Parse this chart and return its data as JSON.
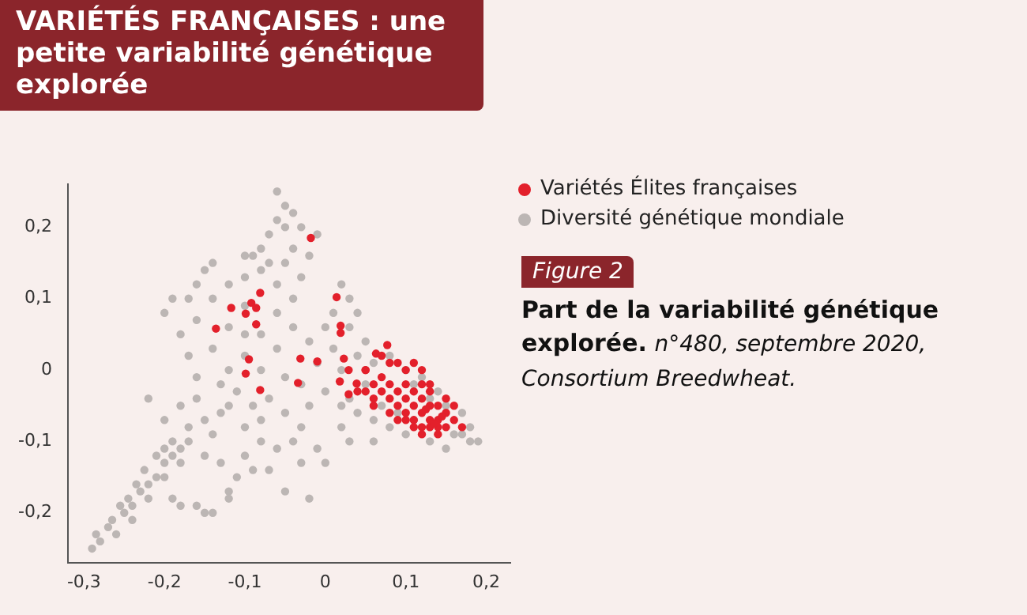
{
  "chart_data": {
    "type": "scatter",
    "title": "VARIÉTÉS FRANÇAISES : une petite variabilité génétique explorée",
    "annotations": [
      "Figure 2",
      "Part de la variabilité génétique explorée.",
      "n°480, septembre 2020, Consortium Breedwheat."
    ],
    "legend": "top right",
    "marker": "circle",
    "grid": false,
    "xlim": [
      -0.32,
      0.23
    ],
    "ylim": [
      -0.27,
      0.26
    ],
    "xticks": [
      {
        "value": -0.3,
        "label": "-0,3"
      },
      {
        "value": -0.2,
        "label": "-0,2"
      },
      {
        "value": -0.1,
        "label": "-0,1"
      },
      0,
      {
        "value": 0.1,
        "label": "0,1"
      },
      {
        "value": 0.2,
        "label": "0,2"
      }
    ],
    "yticks": [
      {
        "value": -0.2,
        "label": "-0,2"
      },
      {
        "value": -0.1,
        "label": "-0,1"
      },
      0,
      {
        "value": 0.1,
        "label": "0,1"
      },
      {
        "value": 0.2,
        "label": "0,2"
      }
    ],
    "series": [
      {
        "name": "Variétés Élites françaises",
        "color": "#e3202b",
        "x": [
          -0.018,
          0.014,
          -0.081,
          -0.092,
          -0.086,
          -0.117,
          -0.099,
          -0.086,
          -0.136,
          0.019,
          0.019,
          -0.095,
          -0.031,
          -0.01,
          0.023,
          -0.099,
          -0.034,
          -0.081,
          0.018,
          0.029,
          0.039,
          0.029,
          0.077,
          0.063,
          0.05,
          0.08,
          0.09,
          0.1,
          0.11,
          0.12,
          0.13,
          0.14,
          0.12,
          0.11,
          0.1,
          0.13,
          0.14,
          0.15,
          0.12,
          0.13,
          0.11,
          0.1,
          0.14,
          0.15,
          0.16,
          0.12,
          0.14,
          0.11,
          0.09,
          0.08,
          0.07,
          0.06,
          0.07,
          0.09,
          0.1,
          0.11,
          0.12,
          0.13,
          0.05,
          0.06,
          0.08,
          0.09,
          0.13,
          0.15,
          0.16,
          0.17,
          0.1,
          0.12,
          0.08,
          0.07,
          0.05,
          0.04,
          0.06,
          0.145,
          0.125,
          0.135
        ],
        "values": [
          0.185,
          0.102,
          0.108,
          0.094,
          0.087,
          0.087,
          0.079,
          0.064,
          0.058,
          0.062,
          0.052,
          0.015,
          0.016,
          0.012,
          0.016,
          -0.005,
          -0.018,
          -0.028,
          -0.016,
          0,
          -0.019,
          -0.034,
          0.035,
          0.023,
          0,
          -0.02,
          -0.03,
          -0.04,
          -0.03,
          -0.04,
          -0.05,
          -0.05,
          -0.06,
          -0.05,
          -0.06,
          -0.07,
          -0.07,
          -0.06,
          -0.08,
          -0.08,
          -0.07,
          -0.07,
          -0.08,
          -0.08,
          -0.07,
          -0.09,
          -0.09,
          -0.08,
          -0.05,
          -0.04,
          -0.03,
          -0.02,
          -0.01,
          0.01,
          0,
          0.01,
          0,
          -0.02,
          -0.03,
          -0.04,
          -0.06,
          -0.07,
          -0.03,
          -0.04,
          -0.05,
          -0.08,
          -0.02,
          -0.02,
          0.01,
          0.02,
          0,
          -0.03,
          -0.05,
          -0.065,
          -0.055,
          -0.075
        ]
      },
      {
        "name": "Diversité génétique mondiale",
        "color": "#bcb6b4",
        "x": [
          -0.29,
          -0.28,
          -0.285,
          -0.27,
          -0.26,
          -0.265,
          -0.25,
          -0.255,
          -0.24,
          -0.245,
          -0.23,
          -0.235,
          -0.22,
          -0.21,
          -0.225,
          -0.2,
          -0.21,
          -0.19,
          -0.2,
          -0.18,
          -0.19,
          -0.17,
          -0.24,
          -0.22,
          -0.2,
          -0.18,
          -0.18,
          -0.16,
          -0.15,
          -0.14,
          -0.19,
          -0.12,
          -0.11,
          -0.09,
          -0.07,
          -0.05,
          -0.02,
          -0.03,
          0,
          -0.01,
          -0.13,
          -0.15,
          -0.1,
          -0.06,
          -0.04,
          -0.08,
          0.02,
          -0.12,
          -0.2,
          -0.19,
          -0.17,
          -0.16,
          -0.15,
          -0.14,
          -0.16,
          -0.18,
          -0.17,
          -0.16,
          -0.18,
          -0.16,
          -0.15,
          -0.17,
          -0.14,
          -0.2,
          -0.22,
          -0.13,
          -0.14,
          -0.12,
          -0.1,
          -0.08,
          -0.12,
          -0.1,
          -0.14,
          -0.12,
          -0.1,
          -0.08,
          -0.06,
          -0.04,
          -0.06,
          -0.04,
          -0.02,
          -0.06,
          -0.08,
          -0.05,
          -0.03,
          -0.11,
          -0.09,
          -0.07,
          -0.12,
          -0.05,
          -0.02,
          0,
          -0.01,
          0,
          0.01,
          -0.03,
          -0.1,
          -0.13,
          -0.08,
          -0.03,
          -0.1,
          -0.08,
          -0.07,
          -0.06,
          -0.05,
          -0.06,
          -0.05,
          -0.04,
          -0.04,
          -0.03,
          -0.02,
          -0.01,
          -0.07,
          -0.05,
          -0.09,
          -0.1,
          0.02,
          0.03,
          0.01,
          0.03,
          0.05,
          0.04,
          0.02,
          0.04,
          0.06,
          0.08,
          0.1,
          0.12,
          0.14,
          0.15,
          0.17,
          0.18,
          0.19,
          0.18,
          0.16,
          0.15,
          0.13,
          0.1,
          0.08,
          0.06,
          0.04,
          0.03,
          0.05,
          0.07,
          0.09,
          0.11,
          0.13,
          0.11,
          0.06,
          0.02,
          0.03,
          0.17
        ],
        "values": [
          -0.25,
          -0.24,
          -0.23,
          -0.22,
          -0.23,
          -0.21,
          -0.2,
          -0.19,
          -0.19,
          -0.18,
          -0.17,
          -0.16,
          -0.16,
          -0.15,
          -0.14,
          -0.13,
          -0.12,
          -0.12,
          -0.11,
          -0.11,
          -0.1,
          -0.1,
          -0.21,
          -0.18,
          -0.15,
          -0.13,
          -0.19,
          -0.19,
          -0.2,
          -0.2,
          -0.18,
          -0.17,
          -0.15,
          -0.14,
          -0.14,
          -0.17,
          -0.18,
          -0.13,
          -0.13,
          -0.11,
          -0.13,
          -0.12,
          -0.12,
          -0.11,
          -0.1,
          -0.1,
          -0.08,
          -0.18,
          0.08,
          0.1,
          0.1,
          0.12,
          0.14,
          0.15,
          0.07,
          0.05,
          0.02,
          -0.01,
          -0.05,
          -0.04,
          -0.07,
          -0.08,
          -0.09,
          -0.07,
          -0.04,
          -0.06,
          0.1,
          0.12,
          0.13,
          0.14,
          0.06,
          0.05,
          0.03,
          0,
          0.02,
          0.05,
          0.08,
          0.1,
          0.12,
          0.06,
          0.04,
          0.03,
          0,
          -0.01,
          -0.02,
          -0.03,
          -0.05,
          -0.04,
          -0.05,
          -0.06,
          -0.05,
          -0.03,
          0.01,
          0.06,
          0.03,
          0.13,
          0.09,
          -0.02,
          -0.07,
          -0.08,
          -0.08,
          0.17,
          0.19,
          0.21,
          0.23,
          0.25,
          0.2,
          0.22,
          0.17,
          0.2,
          0.16,
          0.19,
          0.15,
          0.15,
          0.16,
          0.16,
          0.12,
          0.1,
          0.08,
          0.06,
          0.04,
          0.08,
          0,
          0.02,
          0.01,
          0.02,
          0,
          -0.01,
          -0.03,
          -0.05,
          -0.06,
          -0.08,
          -0.1,
          -0.1,
          -0.09,
          -0.11,
          -0.1,
          -0.09,
          -0.08,
          -0.07,
          -0.06,
          -0.04,
          -0.02,
          -0.05,
          -0.06,
          -0.07,
          -0.04,
          -0.02,
          -0.1,
          -0.05,
          -0.1,
          -0.09
        ]
      }
    ]
  }
}
